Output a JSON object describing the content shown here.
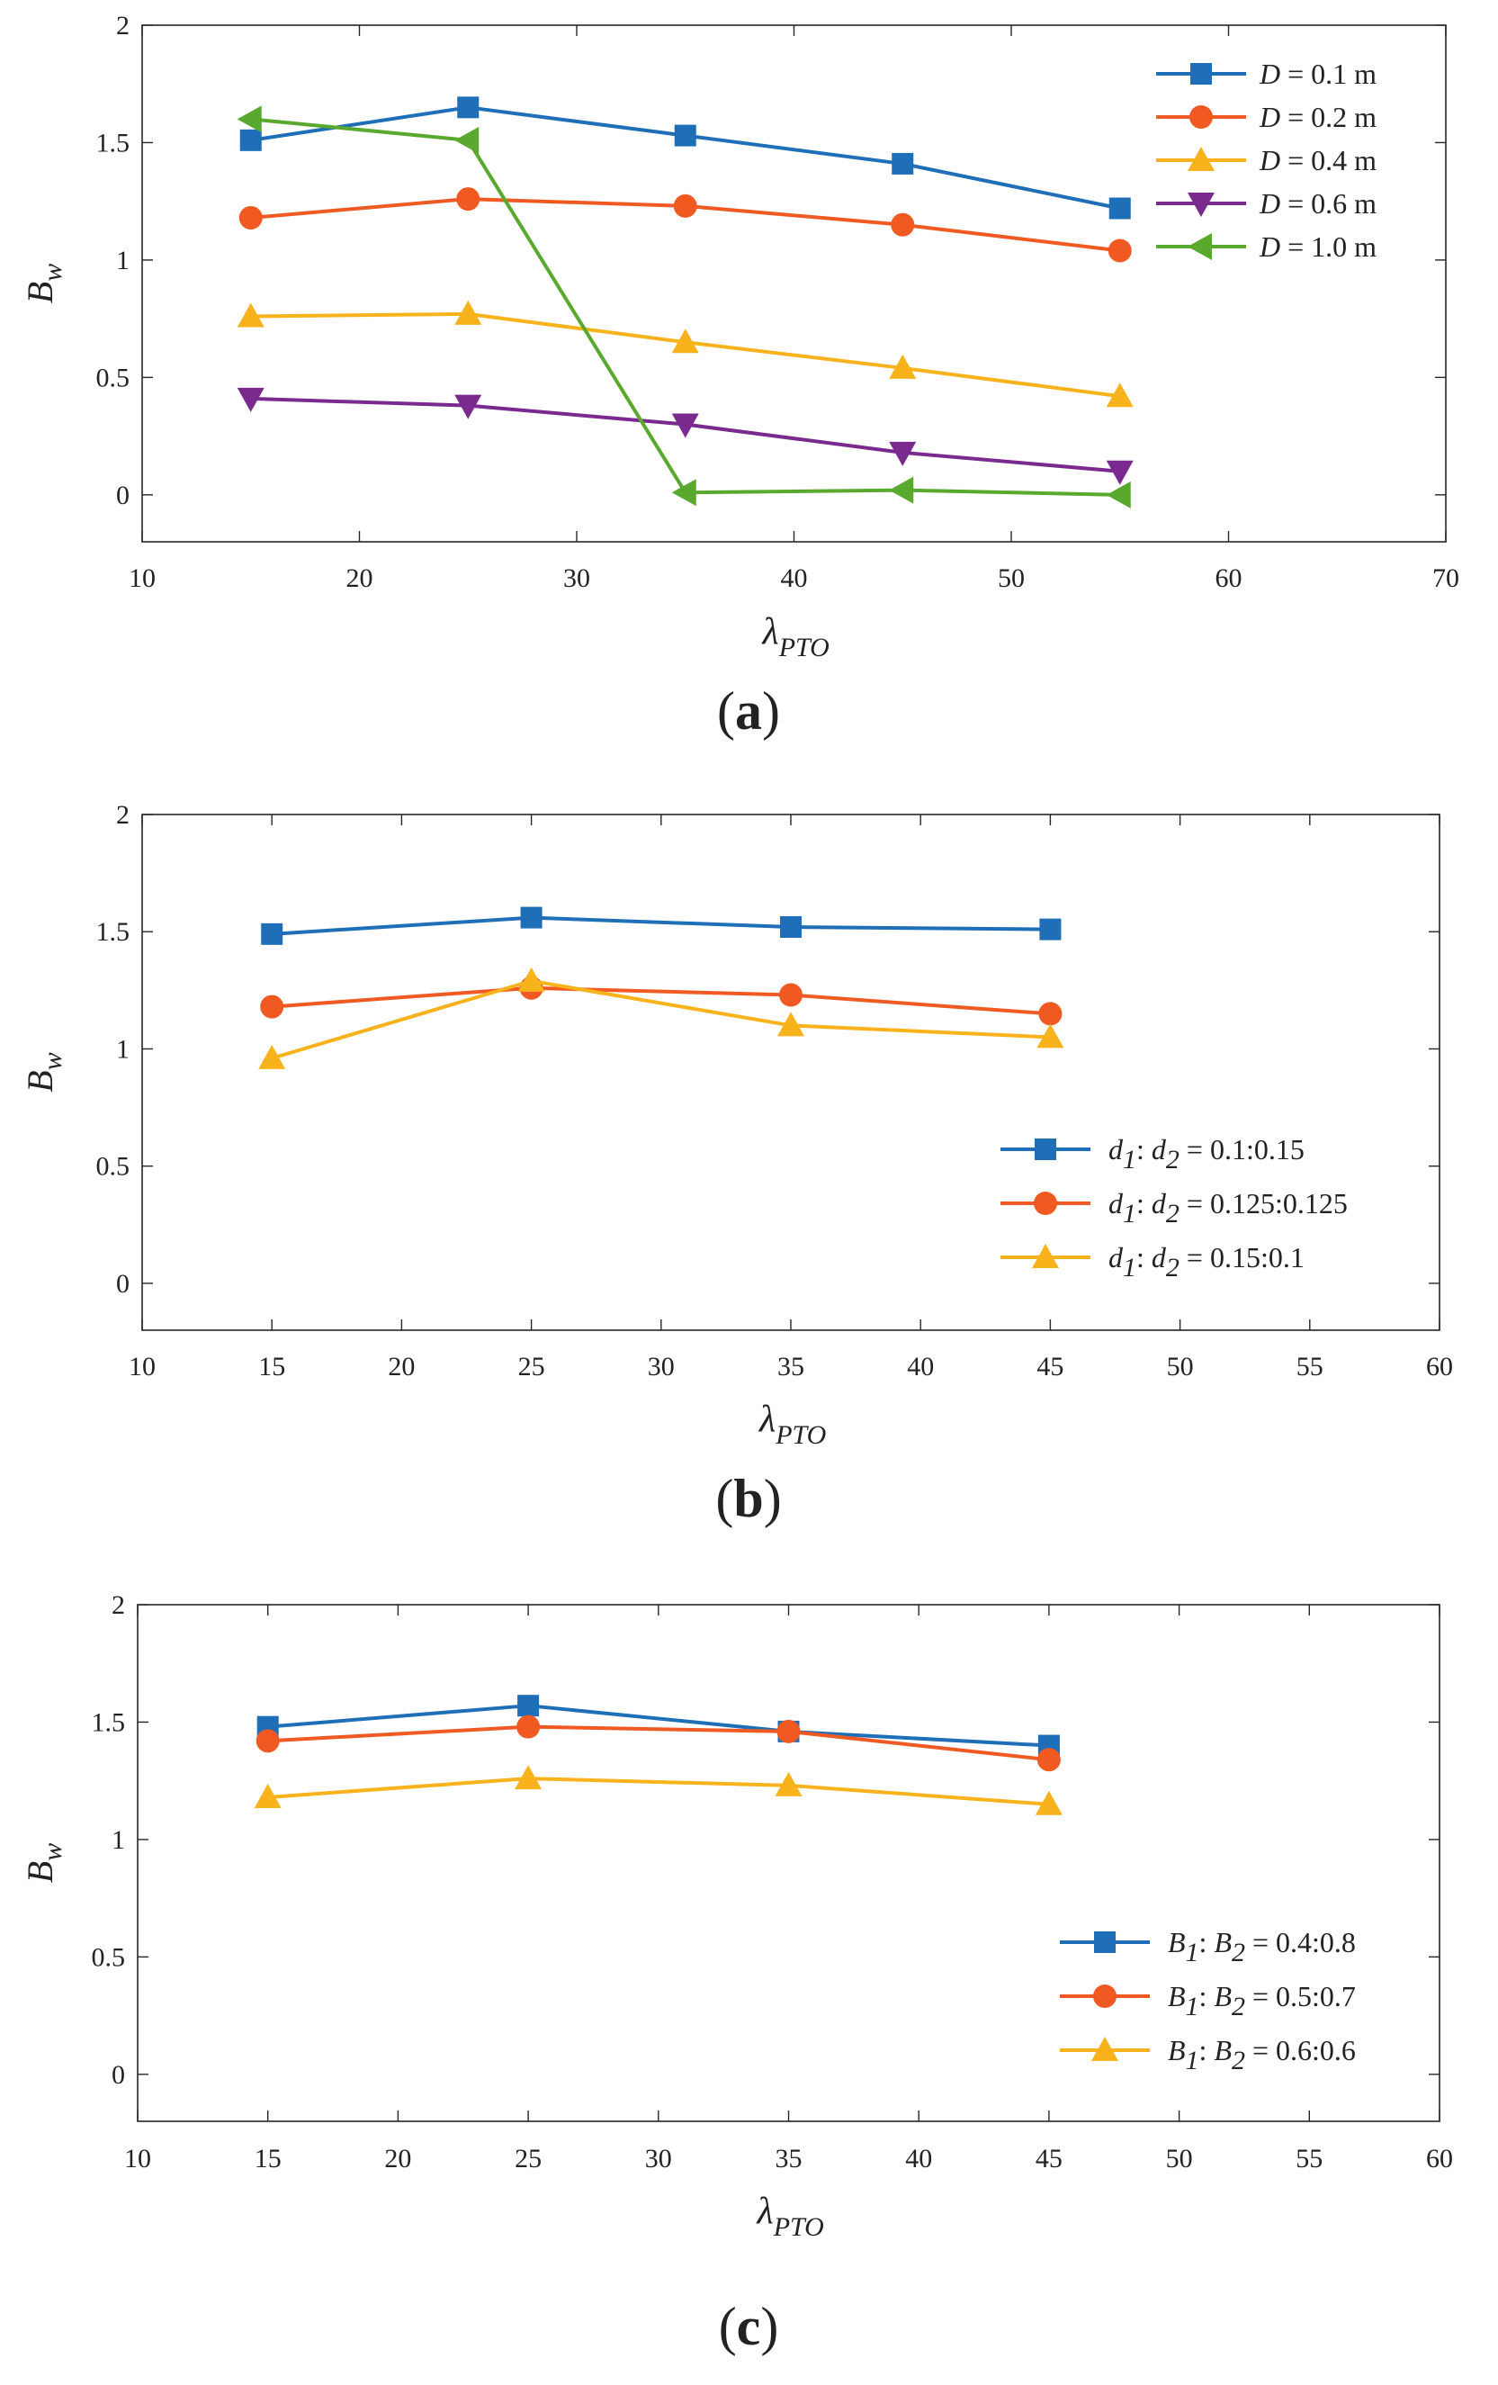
{
  "chart_data": [
    {
      "type": "line",
      "panel_label": "(a)",
      "panel_letter": "a",
      "xlabel_main": "λ",
      "xlabel_sub": "PTO",
      "ylabel_main": "B",
      "ylabel_sub": "w",
      "xlim": [
        10,
        70
      ],
      "ylim": [
        -0.2,
        2
      ],
      "xticks": [
        10,
        20,
        30,
        40,
        50,
        60,
        70
      ],
      "yticks": [
        0,
        0.5,
        1,
        1.5,
        2
      ],
      "xtick_labels": [
        "10",
        "20",
        "30",
        "40",
        "50",
        "60",
        "70"
      ],
      "ytick_labels": [
        "0",
        "0.5",
        "1",
        "1.5",
        "2"
      ],
      "legend_position": "top-right",
      "series": [
        {
          "name": "D = 0.1 m",
          "legend": {
            "var": "D",
            "rest": " = 0.1 m"
          },
          "color": "#1f6fb8",
          "marker": "square",
          "x": [
            15,
            25,
            35,
            45,
            55
          ],
          "values": [
            1.51,
            1.65,
            1.53,
            1.41,
            1.22
          ]
        },
        {
          "name": "D = 0.2 m",
          "legend": {
            "var": "D",
            "rest": " = 0.2 m"
          },
          "color": "#f05a22",
          "marker": "circle",
          "x": [
            15,
            25,
            35,
            45,
            55
          ],
          "values": [
            1.18,
            1.26,
            1.23,
            1.15,
            1.04
          ]
        },
        {
          "name": "D = 0.4 m",
          "legend": {
            "var": "D",
            "rest": " = 0.4 m"
          },
          "color": "#f7b21c",
          "marker": "triangle-up",
          "x": [
            15,
            25,
            35,
            45,
            55
          ],
          "values": [
            0.76,
            0.77,
            0.65,
            0.54,
            0.42
          ]
        },
        {
          "name": "D = 0.6 m",
          "legend": {
            "var": "D",
            "rest": " = 0.6 m"
          },
          "color": "#7a2a8f",
          "marker": "triangle-down",
          "x": [
            15,
            25,
            35,
            45,
            55
          ],
          "values": [
            0.41,
            0.38,
            0.3,
            0.18,
            0.1
          ]
        },
        {
          "name": "D = 1.0 m",
          "legend": {
            "var": "D",
            "rest": " = 1.0 m"
          },
          "color": "#5aa92f",
          "marker": "triangle-left",
          "x": [
            15,
            25,
            35,
            45,
            55
          ],
          "values": [
            1.6,
            1.51,
            0.01,
            0.02,
            0.0
          ]
        }
      ]
    },
    {
      "type": "line",
      "panel_label": "(b)",
      "panel_letter": "b",
      "xlabel_main": "λ",
      "xlabel_sub": "PTO",
      "ylabel_main": "B",
      "ylabel_sub": "w",
      "xlim": [
        10,
        60
      ],
      "ylim": [
        -0.2,
        2
      ],
      "xticks": [
        10,
        15,
        20,
        25,
        30,
        35,
        40,
        45,
        50,
        55,
        60
      ],
      "yticks": [
        0,
        0.5,
        1,
        1.5,
        2
      ],
      "xtick_labels": [
        "10",
        "15",
        "20",
        "25",
        "30",
        "35",
        "40",
        "45",
        "50",
        "55",
        "60"
      ],
      "ytick_labels": [
        "0",
        "0.5",
        "1",
        "1.5",
        "2"
      ],
      "legend_position": "lower-right",
      "series": [
        {
          "name": "d1: d2 = 0.1:0.15",
          "legend": {
            "v1": "d",
            "s1": "1",
            "sep": ": ",
            "v2": "d",
            "s2": "2",
            "rest": " = 0.1:0.15"
          },
          "color": "#1f6fb8",
          "marker": "square",
          "x": [
            15,
            25,
            35,
            45
          ],
          "values": [
            1.49,
            1.56,
            1.52,
            1.51
          ]
        },
        {
          "name": "d1: d2 = 0.125:0.125",
          "legend": {
            "v1": "d",
            "s1": "1",
            "sep": ": ",
            "v2": "d",
            "s2": "2",
            "rest": " = 0.125:0.125"
          },
          "color": "#f05a22",
          "marker": "circle",
          "x": [
            15,
            25,
            35,
            45
          ],
          "values": [
            1.18,
            1.26,
            1.23,
            1.15
          ]
        },
        {
          "name": "d1: d2 = 0.15:0.1",
          "legend": {
            "v1": "d",
            "s1": "1",
            "sep": ": ",
            "v2": "d",
            "s2": "2",
            "rest": " = 0.15:0.1"
          },
          "color": "#f7b21c",
          "marker": "triangle-up",
          "x": [
            15,
            25,
            35,
            45
          ],
          "values": [
            0.96,
            1.29,
            1.1,
            1.05
          ]
        }
      ]
    },
    {
      "type": "line",
      "panel_label": "(c)",
      "panel_letter": "c",
      "xlabel_main": "λ",
      "xlabel_sub": "PTO",
      "ylabel_main": "B",
      "ylabel_sub": "w",
      "xlim": [
        10,
        60
      ],
      "ylim": [
        -0.2,
        2
      ],
      "xticks": [
        10,
        15,
        20,
        25,
        30,
        35,
        40,
        45,
        50,
        55,
        60
      ],
      "yticks": [
        0,
        0.5,
        1,
        1.5,
        2
      ],
      "xtick_labels": [
        "10",
        "15",
        "20",
        "25",
        "30",
        "35",
        "40",
        "45",
        "50",
        "55",
        "60"
      ],
      "ytick_labels": [
        "0",
        "0.5",
        "1",
        "1.5",
        "2"
      ],
      "legend_position": "lower-right",
      "series": [
        {
          "name": "B1: B2 = 0.4:0.8",
          "legend": {
            "v1": "B",
            "s1": "1",
            "sep": ": ",
            "v2": "B",
            "s2": "2",
            "rest": " = 0.4:0.8"
          },
          "color": "#1f6fb8",
          "marker": "square",
          "x": [
            15,
            25,
            35,
            45
          ],
          "values": [
            1.48,
            1.57,
            1.46,
            1.4
          ]
        },
        {
          "name": "B1: B2 = 0.5:0.7",
          "legend": {
            "v1": "B",
            "s1": "1",
            "sep": ": ",
            "v2": "B",
            "s2": "2",
            "rest": " = 0.5:0.7"
          },
          "color": "#f05a22",
          "marker": "circle",
          "x": [
            15,
            25,
            35,
            45
          ],
          "values": [
            1.42,
            1.48,
            1.46,
            1.34
          ]
        },
        {
          "name": "B1: B2 = 0.6:0.6",
          "legend": {
            "v1": "B",
            "s1": "1",
            "sep": ": ",
            "v2": "B",
            "s2": "2",
            "rest": " = 0.6:0.6"
          },
          "color": "#f7b21c",
          "marker": "triangle-up",
          "x": [
            15,
            25,
            35,
            45
          ],
          "values": [
            1.18,
            1.26,
            1.23,
            1.15
          ]
        }
      ]
    }
  ]
}
